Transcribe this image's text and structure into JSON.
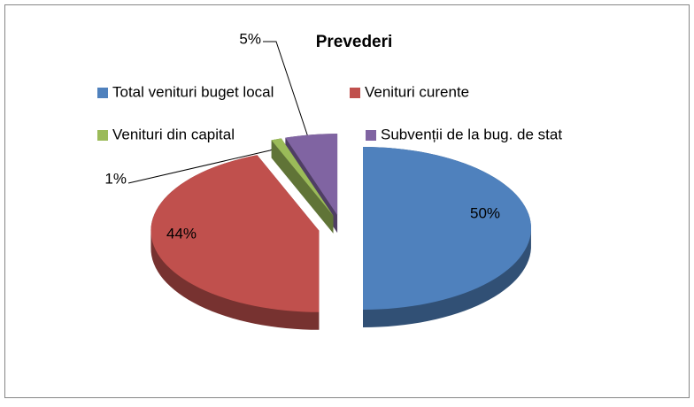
{
  "chart_data": {
    "type": "pie",
    "title": "Prevederi",
    "categories": [
      "Total venituri buget local",
      "Venituri curente",
      "Venituri din capital",
      "Subvenții de la bug. de stat"
    ],
    "values": [
      50,
      44,
      1,
      5
    ],
    "value_labels": [
      "50%",
      "44%",
      "1%",
      "5%"
    ],
    "colors": [
      "#4f81bd",
      "#c0504d",
      "#9bbb59",
      "#8064a2"
    ],
    "legend": "top"
  }
}
